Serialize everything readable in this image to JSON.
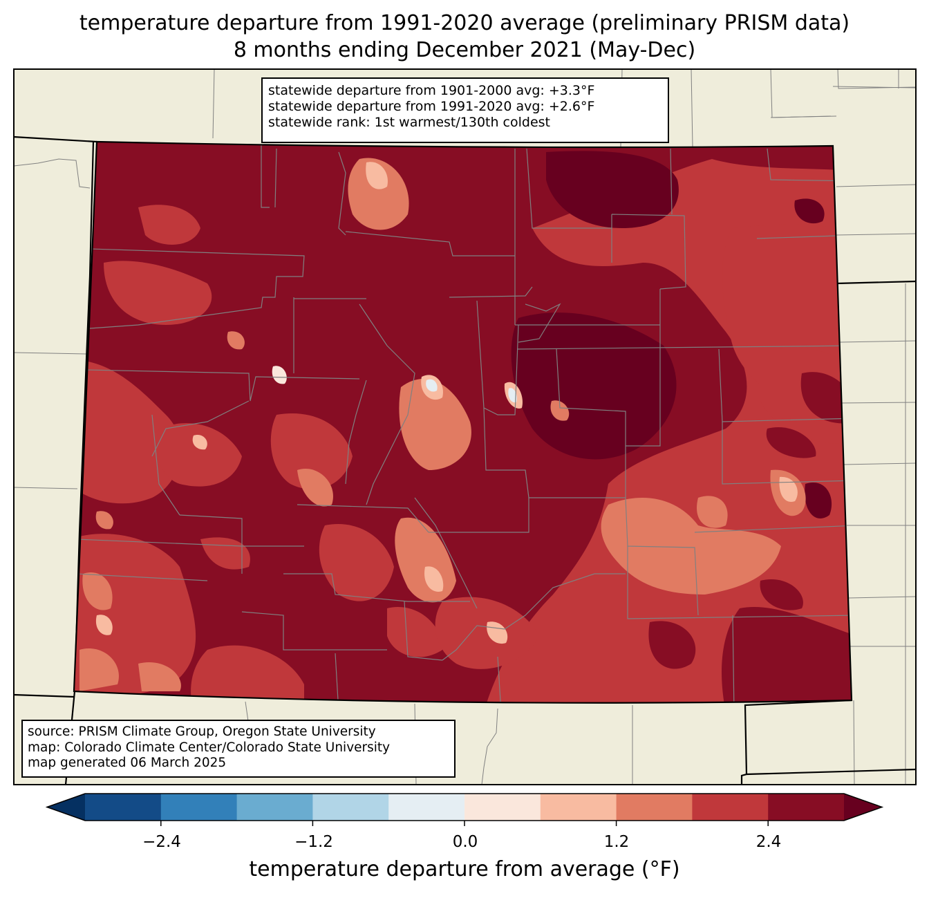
{
  "title": {
    "line1": "temperature departure from 1991-2020 average (preliminary PRISM data)",
    "line2": "8 months ending December 2021 (May-Dec)"
  },
  "stats": {
    "line1": "statewide departure from 1901-2000 avg: +3.3°F",
    "line2": "statewide departure from 1991-2020 avg: +2.6°F",
    "line3": "statewide rank: 1st warmest/130th coldest"
  },
  "source": {
    "line1": "source: PRISM Climate Group, Oregon State University",
    "line2": "map: Colorado Climate Center/Colorado State University",
    "line3": "map generated 06 March 2025"
  },
  "colorbar": {
    "label": "temperature departure from average (°F)",
    "ticks": [
      "−2.4",
      "−1.2",
      "0.0",
      "1.2",
      "2.4"
    ],
    "bins": [
      -3.0,
      -2.4,
      -1.8,
      -1.2,
      -0.6,
      0.0,
      0.6,
      1.2,
      1.8,
      2.4,
      3.0
    ],
    "colors": [
      "#053061",
      "#134b87",
      "#3280b9",
      "#6aacd0",
      "#b1d5e7",
      "#e5eef3",
      "#fae7dc",
      "#f8bba1",
      "#e17b62",
      "#c0383b",
      "#870d24",
      "#67001f"
    ]
  },
  "map": {
    "background_color": "#efeddb",
    "state_border_color": "#000000",
    "county_line_color": "#808080"
  }
}
